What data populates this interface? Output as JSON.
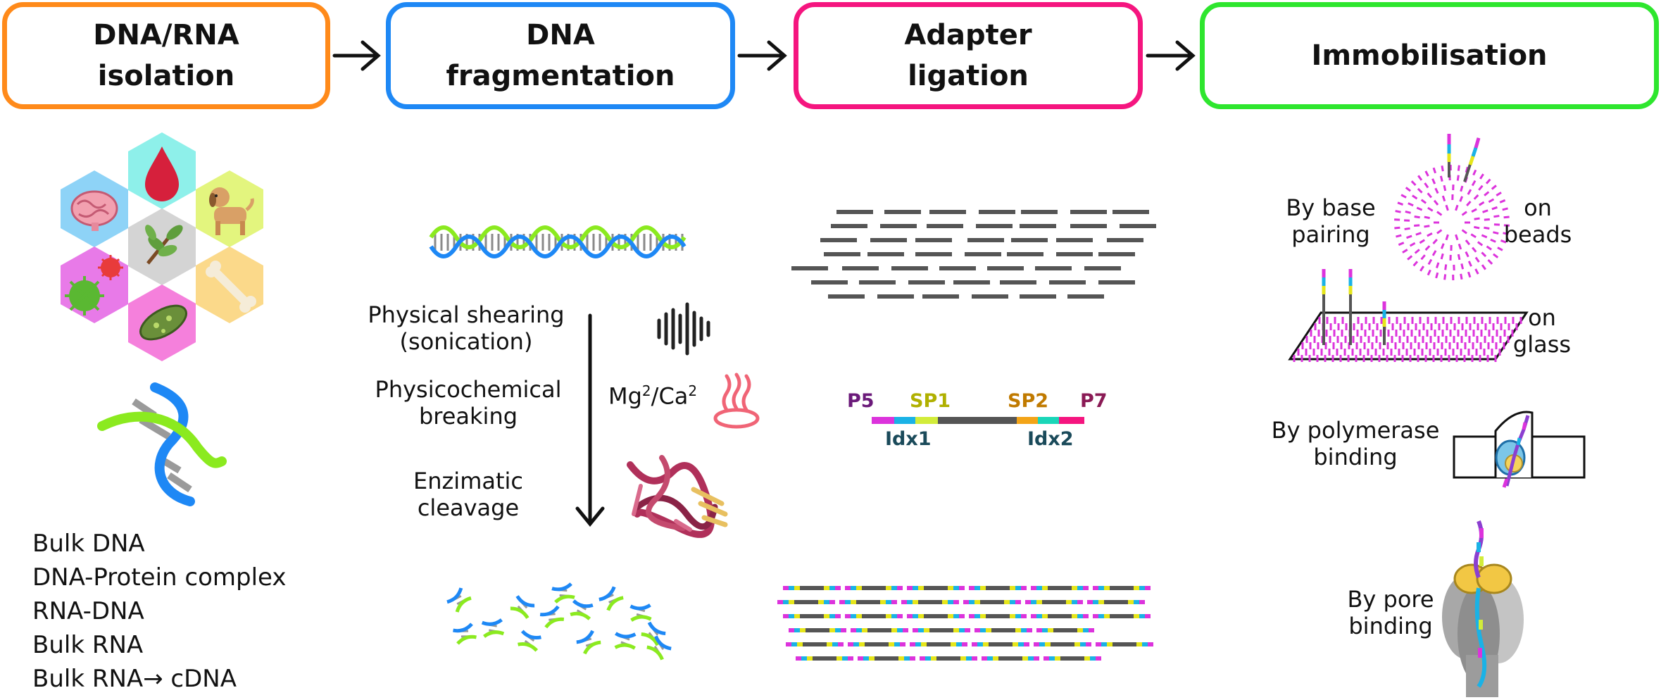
{
  "steps": [
    {
      "line1": "DNA/RNA",
      "line2": "isolation",
      "color": "#ff8a1a"
    },
    {
      "line1": "DNA",
      "line2": "fragmentation",
      "color": "#1e88f5"
    },
    {
      "line1": "Adapter",
      "line2": "ligation",
      "color": "#f5157f"
    },
    {
      "line1": "Immobilisation",
      "line2": "",
      "color": "#2ee62e"
    }
  ],
  "sources": {
    "items": [
      "Bulk DNA",
      "DNA-Protein complex",
      "RNA-DNA",
      "Bulk RNA",
      "Bulk RNA→ cDNA"
    ]
  },
  "fragmentation": {
    "method1_line1": "Physical shearing",
    "method1_line2": "(sonication)",
    "method2_line1": "Physicochemical",
    "method2_line2": "breaking",
    "ions": "Mg",
    "ions_sup1": "2",
    "ions_mid": "/Ca",
    "ions_sup2": "2",
    "method3_line1": "Enzimatic",
    "method3_line2": "cleavage"
  },
  "adapter": {
    "p5": "P5",
    "sp1": "SP1",
    "sp2": "SP2",
    "p7": "P7",
    "idx1": "Idx1",
    "idx2": "Idx2"
  },
  "immobilisation": {
    "base_line1": "By base",
    "base_line2": "pairing",
    "beads_line1": "on",
    "beads_line2": "beads",
    "glass_line1": "on",
    "glass_line2": "glass",
    "poly_line1": "By polymerase",
    "poly_line2": "binding",
    "pore_line1": "By pore",
    "pore_line2": "binding"
  },
  "colors": {
    "magenta": "#dc33dc",
    "cyan": "#1ab2e6",
    "yellow": "#e6e61a",
    "green": "#7ee01a",
    "gray": "#555555",
    "blue": "#1e88f5",
    "lime": "#8bea1f"
  },
  "icons": [
    "brain-icon",
    "blood-drop-icon",
    "dog-icon",
    "leaf-icon",
    "virus-icon",
    "bacterium-icon",
    "bone-icon",
    "dna-helix-icon",
    "sound-wave-icon",
    "hot-springs-icon",
    "protein-icon",
    "nanopore-icon"
  ]
}
